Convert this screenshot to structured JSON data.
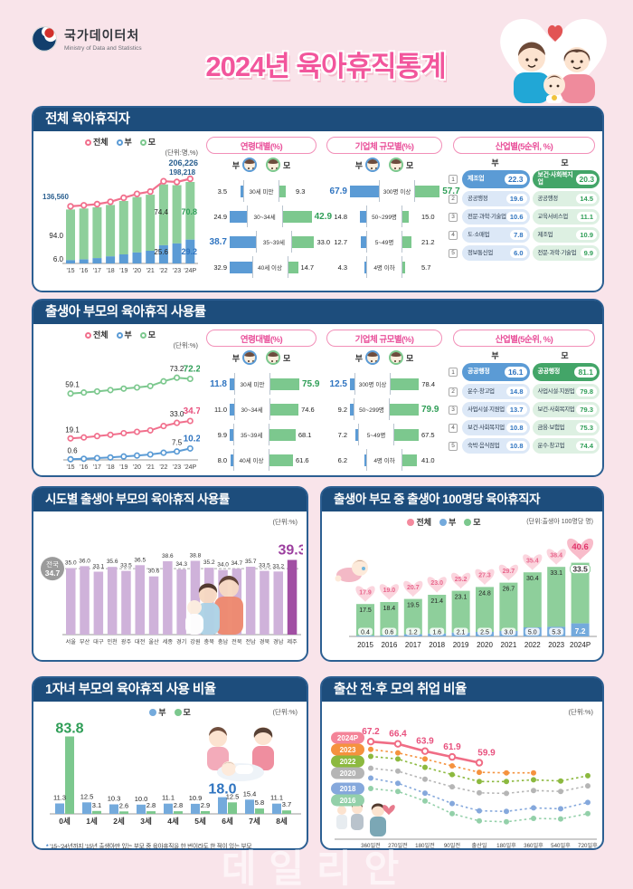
{
  "header": {
    "agency_name": "국가데이터처",
    "agency_name_en": "Ministry of Data and Statistics",
    "title": "2024년 육아휴직통계"
  },
  "watermark": "데일리안",
  "legend": {
    "total": "전체",
    "father": "부",
    "mother": "모"
  },
  "panel_headers": {
    "age": "연령대별(%)",
    "size": "기업체 규모별(%)",
    "industry": "산업별(5순위, %)"
  },
  "colors": {
    "background": "#f9e4ea",
    "card_border": "#2c5f92",
    "card_titlebar": "#1d4d7c",
    "title_pink": "#f2569c",
    "total_line": "#f1708d",
    "father_blue": "#5b9bd5",
    "mother_green": "#7cc88e",
    "region_bar": "#cbaed6",
    "region_highlight": "#a14fa3",
    "rank1_father": "#5b9bd5",
    "rank1_mother": "#43a568"
  },
  "sections": {
    "s1": {
      "title": "전체 육아휴직자",
      "unit": "(단위:명,%)"
    },
    "s2": {
      "title": "출생아 부모의 육아휴직 사용률",
      "unit": "(단위:%)"
    },
    "s3a": {
      "title": "시도별 출생아 부모의 육아휴직 사용률",
      "unit": "(단위:%)",
      "national_label": "전국",
      "national_value": "34.7"
    },
    "s3b": {
      "title": "출생아 부모 중 출생아 100명당 육아휴직자",
      "unit": "(단위:출생아 100명당 명)"
    },
    "s4a": {
      "title": "1자녀 부모의 육아휴직 사용 비율",
      "unit": "(단위:%)",
      "footnote": "'15~'24년까지 '15년 출생아만 있는 부모 중 육아휴직을 한 번이라도 한 적이 있는 부모"
    },
    "s4b": {
      "title": "출산 전·후 모의 취업 비율",
      "unit": "(단위:%)"
    }
  },
  "chart_data": [
    {
      "id": "s1-trend",
      "type": "stacked_trend",
      "title": "전체 육아휴직자",
      "categories": [
        "'15",
        "'16",
        "'17",
        "'18",
        "'19",
        "'20",
        "'21",
        "'22",
        "'23",
        "'24P"
      ],
      "total_persons": [
        136560,
        139000,
        142000,
        148000,
        158000,
        168000,
        174000,
        200000,
        198218,
        206226
      ],
      "father_share_pct": [
        6.0,
        7.5,
        9.5,
        12.0,
        14.5,
        16.5,
        18.5,
        23.0,
        25.6,
        29.2
      ],
      "labels": {
        "total_first": "136,560",
        "total_2023": "198,218",
        "total_2024": "206,226",
        "mother_first": "94.0",
        "father_first": "6.0",
        "mother_2023": "74.4",
        "mother_2024": "70.8",
        "father_2023": "25.6",
        "father_2024": "29.2"
      },
      "note": "unlabeled yearly values estimated from chart pixels"
    },
    {
      "id": "s1-age",
      "type": "tornado",
      "rows": [
        "30세 미만",
        "30~34세",
        "35~39세",
        "40세 이상"
      ],
      "father": [
        3.5,
        24.9,
        38.7,
        32.9
      ],
      "mother": [
        9.3,
        42.9,
        33.0,
        14.7
      ],
      "father_hl": 2,
      "mother_hl": 1
    },
    {
      "id": "s1-size",
      "type": "tornado",
      "rows": [
        "300명 이상",
        "50~299명",
        "5~49명",
        "4명 이하"
      ],
      "father": [
        67.9,
        14.8,
        12.7,
        4.3
      ],
      "mother": [
        57.7,
        15.0,
        21.2,
        5.7
      ],
      "father_hl": 0,
      "mother_hl": 0
    },
    {
      "id": "s1-industry",
      "type": "ranking",
      "father": [
        {
          "label": "제조업",
          "value": 22.3
        },
        {
          "label": "공공행정",
          "value": 19.6
        },
        {
          "label": "전문·과학·기술업",
          "value": 10.6
        },
        {
          "label": "도·소매업",
          "value": 7.8
        },
        {
          "label": "정보통신업",
          "value": 6.0
        }
      ],
      "mother": [
        {
          "label": "보건·사회복지업",
          "value": 20.3
        },
        {
          "label": "공공행정",
          "value": 14.5
        },
        {
          "label": "교육서비스업",
          "value": 11.1
        },
        {
          "label": "제조업",
          "value": 10.9
        },
        {
          "label": "전문·과학·기술업",
          "value": 9.9
        }
      ]
    },
    {
      "id": "s2-trend",
      "type": "trend_lines",
      "title": "출생아 부모의 육아휴직 사용률",
      "categories": [
        "'15",
        "'16",
        "'17",
        "'18",
        "'19",
        "'20",
        "'21",
        "'22",
        "'23",
        "'24P"
      ],
      "series": [
        {
          "name": "모",
          "color": "#7cc88e",
          "values": [
            59.1,
            60.0,
            61.0,
            62.2,
            63.5,
            64.5,
            65.8,
            70.0,
            73.2,
            72.2
          ]
        },
        {
          "name": "전체",
          "color": "#f1708d",
          "values": [
            19.1,
            20.0,
            21.2,
            22.3,
            23.8,
            25.0,
            26.3,
            30.2,
            33.0,
            34.7
          ]
        },
        {
          "name": "부",
          "color": "#5b9bd5",
          "values": [
            0.6,
            1.0,
            1.6,
            2.2,
            3.1,
            3.9,
            4.8,
            6.4,
            7.5,
            10.2
          ]
        }
      ],
      "labeled_points": {
        "mother": [
          "59.1",
          "73.2",
          "72.2"
        ],
        "total": [
          "19.1",
          "33.0",
          "34.7"
        ],
        "father": [
          "0.6",
          "7.5",
          "10.2"
        ]
      },
      "note": "intermediate years estimated from chart pixels"
    },
    {
      "id": "s2-age",
      "type": "tornado",
      "rows": [
        "30세 미만",
        "30~34세",
        "35~39세",
        "40세 이상"
      ],
      "father": [
        11.8,
        11.0,
        9.9,
        8.0
      ],
      "mother": [
        75.9,
        74.6,
        68.1,
        61.6
      ],
      "father_hl": 0,
      "mother_hl": 0
    },
    {
      "id": "s2-size",
      "type": "tornado",
      "rows": [
        "300명 이상",
        "50~299명",
        "5~49명",
        "4명 이하"
      ],
      "father": [
        12.5,
        9.2,
        7.2,
        6.2
      ],
      "mother": [
        78.4,
        79.9,
        67.5,
        41.0
      ],
      "father_hl": 0,
      "mother_hl": 1
    },
    {
      "id": "s2-industry",
      "type": "ranking",
      "father": [
        {
          "label": "공공행정",
          "value": 16.1
        },
        {
          "label": "운수·창고업",
          "value": 14.8
        },
        {
          "label": "사업시설·지원업",
          "value": 13.7
        },
        {
          "label": "보건·사회복지업",
          "value": 10.8
        },
        {
          "label": "숙박·음식점업",
          "value": 10.8
        }
      ],
      "mother": [
        {
          "label": "공공행정",
          "value": 81.1
        },
        {
          "label": "사업시설·지원업",
          "value": 79.8
        },
        {
          "label": "보건·사회복지업",
          "value": 79.3
        },
        {
          "label": "금융·보험업",
          "value": 75.3
        },
        {
          "label": "운수·창고업",
          "value": 74.4
        }
      ]
    },
    {
      "id": "s3a-region",
      "type": "region_bar",
      "title": "시도별 출생아 부모의 육아휴직 사용률",
      "categories": [
        "서울",
        "부산",
        "대구",
        "인천",
        "광주",
        "대전",
        "울산",
        "세종",
        "경기",
        "강원",
        "충북",
        "충남",
        "전북",
        "전남",
        "경북",
        "경남",
        "제주"
      ],
      "values": [
        35.0,
        36.0,
        33.1,
        35.6,
        33.5,
        36.5,
        30.6,
        38.6,
        34.3,
        38.8,
        35.2,
        34.0,
        34.7,
        35.7,
        33.5,
        33.2,
        39.3
      ],
      "highlight_index": 16,
      "national_average": 34.7
    },
    {
      "id": "s3b-per100",
      "type": "heart_stack",
      "title": "출생아 부모 중 출생아 100명당 육아휴직자",
      "categories": [
        "2015",
        "2016",
        "2017",
        "2018",
        "2019",
        "2020",
        "2021",
        "2022",
        "2023",
        "2024P"
      ],
      "series": [
        {
          "name": "전체",
          "values": [
            17.9,
            19.0,
            20.7,
            23.0,
            25.2,
            27.3,
            29.7,
            35.4,
            38.4,
            40.6
          ]
        },
        {
          "name": "모",
          "values": [
            17.5,
            18.4,
            19.5,
            21.4,
            23.1,
            24.8,
            26.7,
            30.4,
            33.1,
            33.5
          ]
        },
        {
          "name": "부",
          "values": [
            0.4,
            0.6,
            1.2,
            1.6,
            2.1,
            2.5,
            3.0,
            5.0,
            5.3,
            7.2
          ]
        }
      ]
    },
    {
      "id": "s4a-onechild",
      "type": "grouped_bar",
      "title": "1자녀 부모의 육아휴직 사용 비율",
      "categories": [
        "0세",
        "1세",
        "2세",
        "3세",
        "4세",
        "5세",
        "6세",
        "7세",
        "8세"
      ],
      "series": [
        {
          "name": "부",
          "values": [
            11.3,
            12.5,
            10.3,
            10.0,
            11.1,
            10.9,
            18.0,
            15.4,
            11.1
          ]
        },
        {
          "name": "모",
          "values": [
            83.8,
            3.1,
            2.6,
            2.8,
            2.8,
            2.9,
            12.5,
            5.8,
            3.7
          ]
        }
      ],
      "father_hl": 6,
      "mother_hl": 0
    },
    {
      "id": "s4b-employment",
      "type": "employment_lines",
      "title": "출산 전·후 모의 취업 비율",
      "x_labels": [
        "360일전",
        "270일전",
        "180일전",
        "90일전",
        "출산일",
        "180일후",
        "360일후",
        "540일후",
        "720일후"
      ],
      "series": [
        {
          "name": "2024P",
          "color": "#f06d85",
          "badge": "#f48498",
          "dashed": false,
          "labeled": true,
          "values": [
            67.2,
            66.4,
            63.9,
            61.9,
            59.9
          ]
        },
        {
          "name": "2023",
          "color": "#f5923e",
          "badge": "#f5923e",
          "dashed": true,
          "labeled": false,
          "values": [
            64.5,
            63.3,
            61.2,
            58.8,
            56.6,
            56.4,
            56.4
          ]
        },
        {
          "name": "2022",
          "color": "#8cb93f",
          "badge": "#8cb93f",
          "dashed": true,
          "labeled": false,
          "values": [
            62.1,
            61.2,
            58.3,
            55.8,
            53.4,
            53.4,
            54.0,
            53.6,
            55.4
          ]
        },
        {
          "name": "2020",
          "color": "#b5b5b5",
          "badge": "#b5b5b5",
          "dashed": true,
          "labeled": false,
          "values": [
            58.0,
            57.0,
            54.2,
            51.6,
            49.5,
            49.3,
            50.3,
            50.0,
            51.9
          ]
        },
        {
          "name": "2018",
          "color": "#85a8dc",
          "badge": "#85a8dc",
          "dashed": true,
          "labeled": false,
          "values": [
            54.6,
            52.8,
            49.4,
            45.8,
            43.3,
            43.1,
            44.3,
            44.0,
            46.2
          ]
        },
        {
          "name": "2016",
          "color": "#93d0a9",
          "badge": "#93d0a9",
          "dashed": true,
          "labeled": false,
          "values": [
            51.0,
            50.0,
            46.7,
            42.3,
            39.8,
            39.5,
            40.7,
            40.5,
            42.3
          ]
        }
      ],
      "note": "values of non-2024P series estimated from chart pixels"
    }
  ]
}
